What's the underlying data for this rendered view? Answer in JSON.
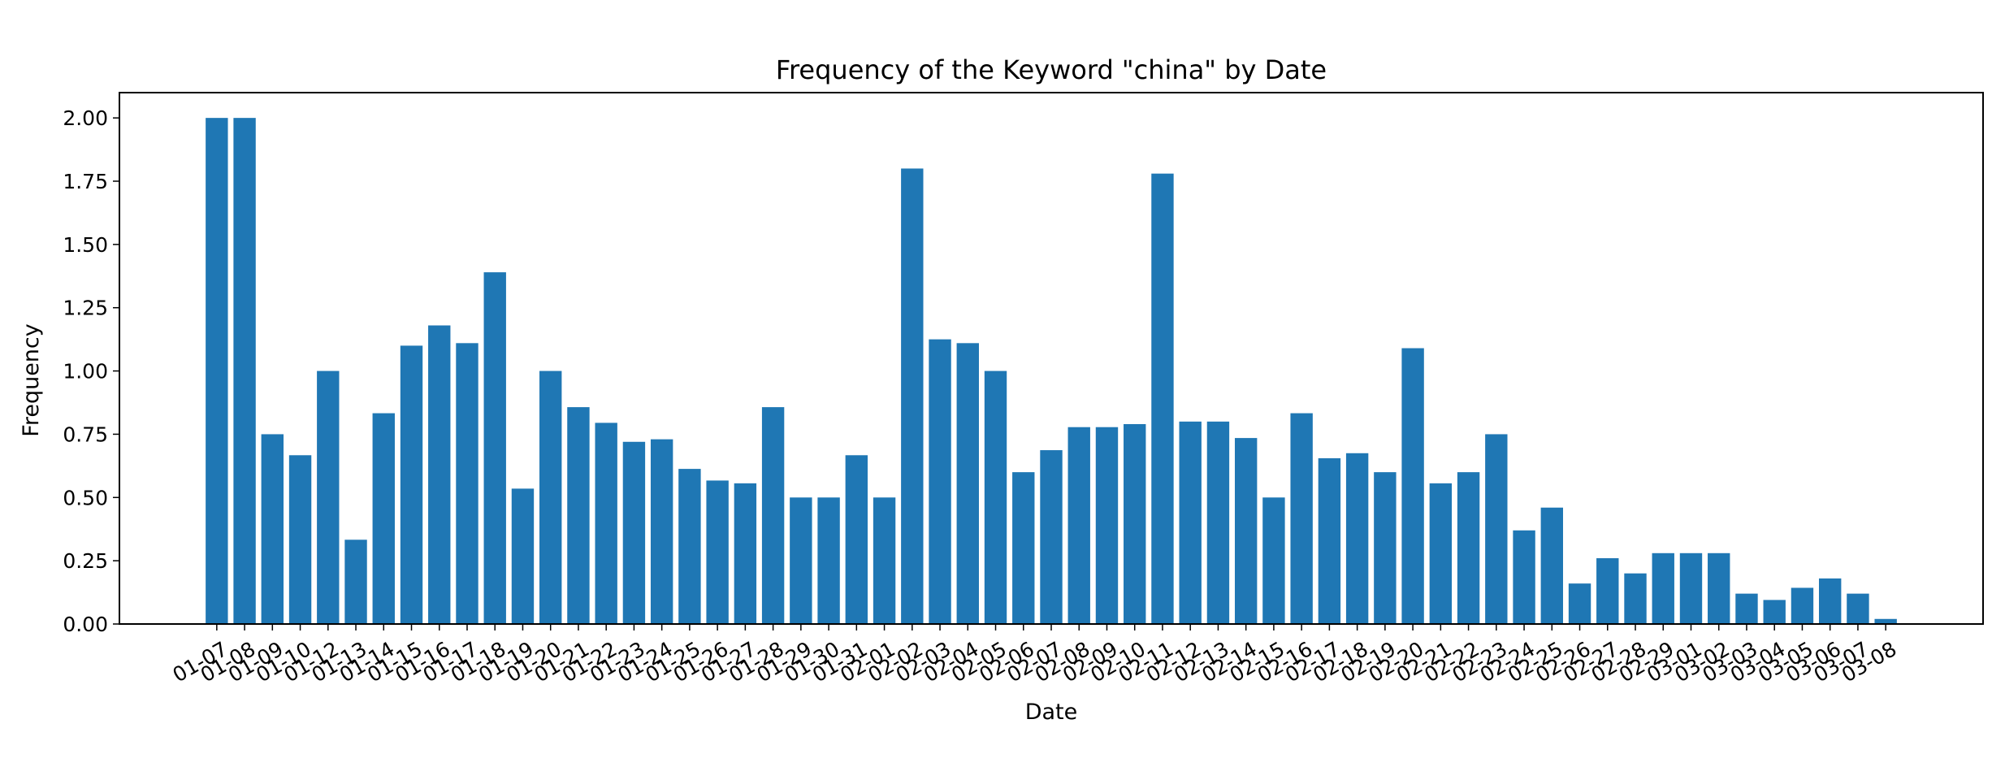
{
  "chart_data": {
    "type": "bar",
    "title": "Frequency of the Keyword \"china\" by Date",
    "xlabel": "Date",
    "ylabel": "Frequency",
    "ylim": [
      0,
      2.1
    ],
    "yticks": [
      "0.00",
      "0.25",
      "0.50",
      "0.75",
      "1.00",
      "1.25",
      "1.50",
      "1.75",
      "2.00"
    ],
    "grid": false,
    "bar_color": "#1f77b4",
    "categories": [
      "01-07",
      "01-08",
      "01-09",
      "01-10",
      "01-12",
      "01-13",
      "01-14",
      "01-15",
      "01-16",
      "01-17",
      "01-18",
      "01-19",
      "01-20",
      "01-21",
      "01-22",
      "01-23",
      "01-24",
      "01-25",
      "01-26",
      "01-27",
      "01-28",
      "01-29",
      "01-30",
      "01-31",
      "02-01",
      "02-02",
      "02-03",
      "02-04",
      "02-05",
      "02-06",
      "02-07",
      "02-08",
      "02-09",
      "02-10",
      "02-11",
      "02-12",
      "02-13",
      "02-14",
      "02-15",
      "02-16",
      "02-17",
      "02-18",
      "02-19",
      "02-20",
      "02-21",
      "02-22",
      "02-23",
      "02-24",
      "02-25",
      "02-26",
      "02-27",
      "02-28",
      "02-29",
      "03-01",
      "03-02",
      "03-03",
      "03-04",
      "03-05",
      "03-06",
      "03-07",
      "03-08"
    ],
    "values": [
      2.0,
      2.0,
      0.75,
      0.667,
      1.0,
      0.333,
      0.833,
      1.1,
      1.18,
      1.11,
      1.39,
      0.535,
      1.0,
      0.857,
      0.795,
      0.72,
      0.73,
      0.613,
      0.567,
      0.556,
      0.857,
      0.5,
      0.5,
      0.667,
      0.5,
      1.8,
      1.125,
      1.11,
      1.0,
      0.6,
      0.687,
      0.778,
      0.778,
      0.79,
      1.78,
      0.8,
      0.8,
      0.735,
      0.5,
      0.833,
      0.655,
      0.675,
      0.6,
      1.09,
      0.556,
      0.6,
      0.75,
      0.37,
      0.46,
      0.16,
      0.26,
      0.2,
      0.28,
      0.28,
      0.28,
      0.12,
      0.095,
      0.143,
      0.18,
      0.12,
      0.02
    ]
  }
}
